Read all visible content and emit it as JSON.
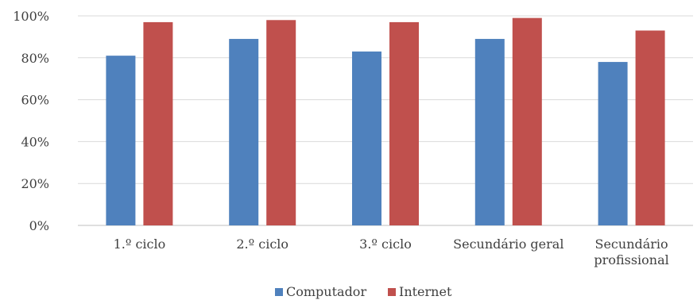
{
  "chart_data": {
    "type": "bar",
    "categories": [
      [
        "1.º ciclo"
      ],
      [
        "2.º ciclo"
      ],
      [
        "3.º ciclo"
      ],
      [
        "Secundário geral"
      ],
      [
        "Secundário",
        "profissional"
      ]
    ],
    "series": [
      {
        "name": "Computador",
        "color": "#4F81BD",
        "values": [
          81,
          89,
          83,
          89,
          78
        ]
      },
      {
        "name": "Internet",
        "color": "#C0504D",
        "values": [
          97,
          98,
          97,
          99,
          93
        ]
      }
    ],
    "yticks": [
      "0%",
      "20%",
      "40%",
      "60%",
      "80%",
      "100%"
    ],
    "ylim": [
      0,
      100
    ],
    "grid": true,
    "gridcolor": "#D9D9D9",
    "legend": "bottom"
  }
}
